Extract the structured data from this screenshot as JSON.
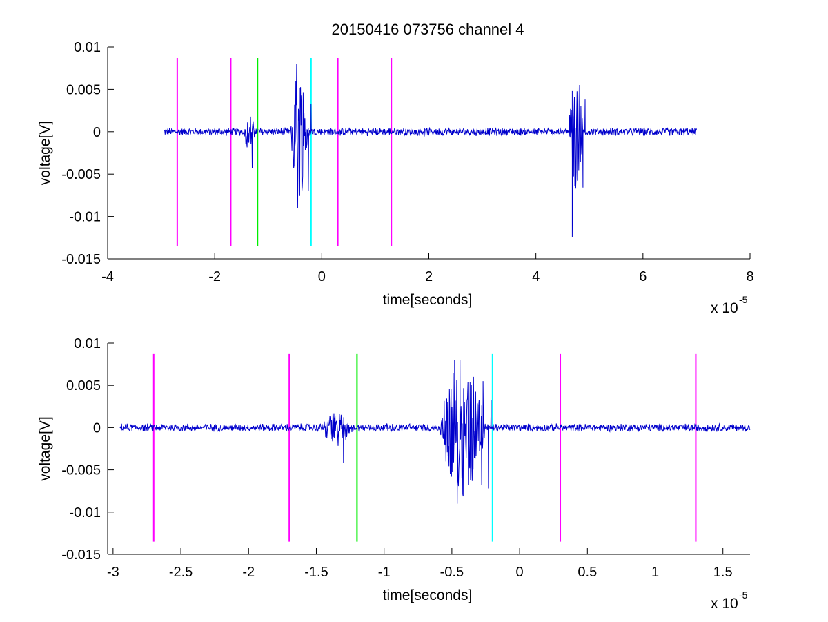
{
  "figure_title": "20150416 073756 channel 4",
  "colors": {
    "signal": "#0000cc",
    "marker_magenta": "#ff00ff",
    "marker_green": "#00ee00",
    "marker_cyan": "#00ffff",
    "axes": "#000000"
  },
  "chart_data": [
    {
      "type": "line",
      "title": "20150416 073756 channel 4",
      "xlabel": "time[seconds]",
      "ylabel": "voltage[V]",
      "x_multiplier": "x 10",
      "x_multiplier_exp": "-5",
      "xlim": [
        -4,
        8
      ],
      "ylim": [
        -0.015,
        0.01
      ],
      "xticks": [
        -4,
        -2,
        0,
        2,
        4,
        6,
        8
      ],
      "xtick_labels": [
        "-4",
        "-2",
        "0",
        "2",
        "4",
        "6",
        "8"
      ],
      "yticks": [
        0.01,
        0.005,
        0,
        -0.005,
        -0.01,
        -0.015
      ],
      "ytick_labels": [
        "0.01",
        "0.005",
        "0",
        "-0.005",
        "-0.01",
        "-0.015"
      ],
      "grid": false,
      "signal": {
        "x_range": [
          -2.95,
          7.0
        ],
        "noise": 0.0004,
        "bursts": [
          {
            "center": -1.35,
            "width": 0.12,
            "amp": 0.002
          },
          {
            "center": -0.42,
            "width": 0.18,
            "amp": 0.008
          },
          {
            "center": 4.75,
            "width": 0.14,
            "amp": 0.008
          }
        ],
        "spikes": [
          {
            "x": -1.3,
            "y": -0.0043
          },
          {
            "x": -0.47,
            "y": 0.008
          },
          {
            "x": -0.45,
            "y": -0.009
          },
          {
            "x": -0.25,
            "y": -0.007
          },
          {
            "x": -0.2,
            "y": 0.0033
          },
          {
            "x": 4.68,
            "y": 0.0048
          },
          {
            "x": 4.68,
            "y": -0.0124
          },
          {
            "x": 4.88,
            "y": -0.0066
          },
          {
            "x": 4.92,
            "y": 0.0038
          }
        ]
      },
      "markers": [
        {
          "x": -2.7,
          "color": "magenta"
        },
        {
          "x": -1.7,
          "color": "magenta"
        },
        {
          "x": -1.2,
          "color": "green"
        },
        {
          "x": -0.2,
          "color": "cyan"
        },
        {
          "x": 0.3,
          "color": "magenta"
        },
        {
          "x": 1.3,
          "color": "magenta"
        }
      ],
      "marker_range": [
        -0.0135,
        0.0087
      ]
    },
    {
      "type": "line",
      "xlabel": "time[seconds]",
      "ylabel": "voltage[V]",
      "x_multiplier": "x 10",
      "x_multiplier_exp": "-5",
      "xlim": [
        -3.04,
        1.7
      ],
      "ylim": [
        -0.015,
        0.01
      ],
      "xticks": [
        -3,
        -2.5,
        -2,
        -1.5,
        -1,
        -0.5,
        0,
        0.5,
        1,
        1.5
      ],
      "xtick_labels": [
        "-3",
        "-2.5",
        "-2",
        "-1.5",
        "-1",
        "-0.5",
        "0",
        "0.5",
        "1",
        "1.5"
      ],
      "yticks": [
        0.01,
        0.005,
        0,
        -0.005,
        -0.01,
        -0.015
      ],
      "ytick_labels": [
        "0.01",
        "0.005",
        "0",
        "-0.005",
        "-0.01",
        "-0.015"
      ],
      "grid": false,
      "signal": {
        "x_range": [
          -2.95,
          1.7
        ],
        "noise": 0.0004,
        "bursts": [
          {
            "center": -1.35,
            "width": 0.12,
            "amp": 0.002
          },
          {
            "center": -0.42,
            "width": 0.18,
            "amp": 0.008
          }
        ],
        "spikes": [
          {
            "x": -1.37,
            "y": 0.0017
          },
          {
            "x": -1.3,
            "y": -0.0042
          },
          {
            "x": -0.48,
            "y": 0.008
          },
          {
            "x": -0.46,
            "y": -0.009
          },
          {
            "x": -0.44,
            "y": 0.008
          },
          {
            "x": -0.28,
            "y": -0.0068
          },
          {
            "x": -0.27,
            "y": 0.0055
          },
          {
            "x": -0.23,
            "y": -0.0072
          },
          {
            "x": -0.21,
            "y": 0.0033
          }
        ]
      },
      "markers": [
        {
          "x": -2.7,
          "color": "magenta"
        },
        {
          "x": -1.7,
          "color": "magenta"
        },
        {
          "x": -1.2,
          "color": "green"
        },
        {
          "x": -0.2,
          "color": "cyan"
        },
        {
          "x": 0.3,
          "color": "magenta"
        },
        {
          "x": 1.3,
          "color": "magenta"
        }
      ],
      "marker_range": [
        -0.0135,
        0.0087
      ]
    }
  ]
}
